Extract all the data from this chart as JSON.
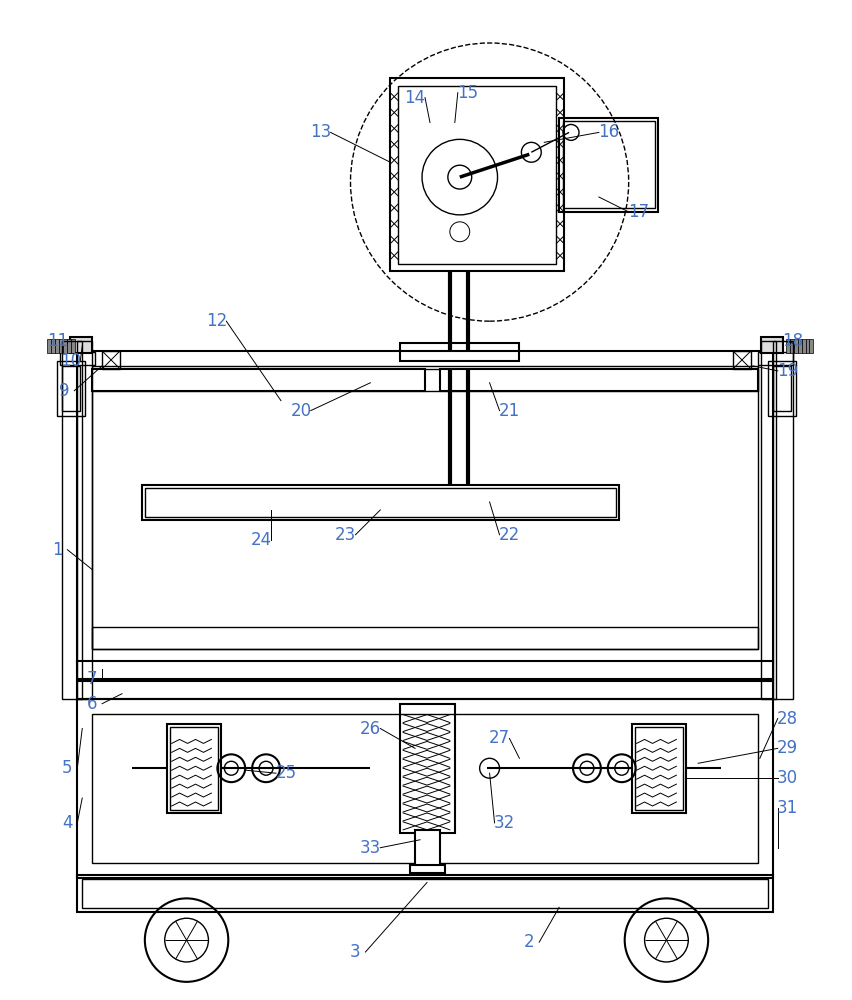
{
  "bg_color": "#ffffff",
  "line_color": "#000000",
  "label_color": "#4472c4",
  "fig_width": 8.53,
  "fig_height": 10.0
}
